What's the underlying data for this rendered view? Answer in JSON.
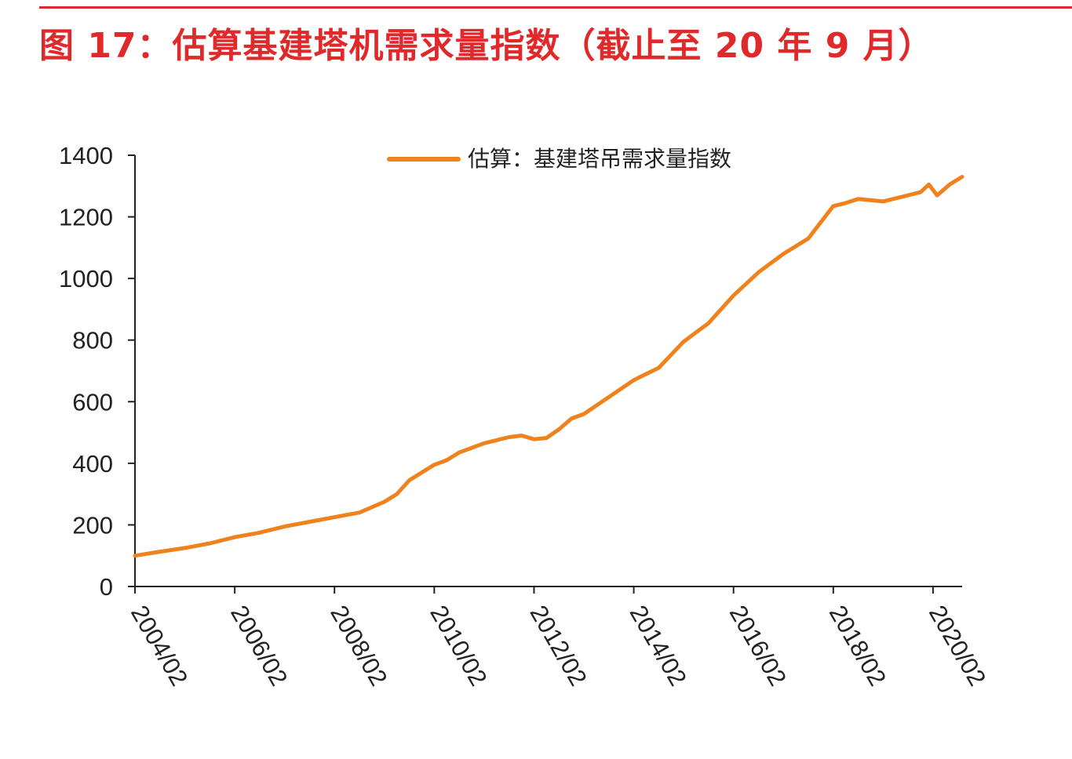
{
  "figure": {
    "title": "图 17：估算基建塔机需求量指数（截止至 20 年 9 月）"
  },
  "colors": {
    "title": "#e0292b",
    "series": "#f0821e",
    "axis": "#222222"
  },
  "chart_data": {
    "type": "line",
    "title": "",
    "xlabel": "",
    "ylabel": "",
    "ylim": [
      0,
      1400
    ],
    "yticks": [
      0,
      200,
      400,
      600,
      800,
      1000,
      1200,
      1400
    ],
    "xlim": [
      "2004/02",
      "2020/09"
    ],
    "xticks": [
      "2004/02",
      "2006/02",
      "2008/02",
      "2010/02",
      "2012/02",
      "2014/02",
      "2016/02",
      "2018/02",
      "2020/02"
    ],
    "grid": false,
    "legend": "top-center",
    "series": [
      {
        "name": "估算：基建塔吊需求量指数",
        "x": [
          "2004/02",
          "2004/08",
          "2005/02",
          "2005/08",
          "2006/02",
          "2006/08",
          "2007/02",
          "2007/08",
          "2008/02",
          "2008/08",
          "2009/02",
          "2009/05",
          "2009/08",
          "2010/02",
          "2010/05",
          "2010/08",
          "2011/02",
          "2011/05",
          "2011/08",
          "2011/11",
          "2012/02",
          "2012/05",
          "2012/08",
          "2012/11",
          "2013/02",
          "2013/08",
          "2014/02",
          "2014/08",
          "2015/02",
          "2015/08",
          "2016/02",
          "2016/08",
          "2017/02",
          "2017/08",
          "2018/02",
          "2018/05",
          "2018/08",
          "2019/02",
          "2019/08",
          "2019/11",
          "2020/01",
          "2020/03",
          "2020/06",
          "2020/09"
        ],
        "values": [
          100,
          113,
          125,
          140,
          160,
          175,
          195,
          210,
          225,
          240,
          275,
          300,
          345,
          395,
          410,
          435,
          465,
          475,
          485,
          490,
          478,
          482,
          510,
          545,
          560,
          615,
          670,
          710,
          795,
          855,
          945,
          1020,
          1080,
          1130,
          1235,
          1245,
          1258,
          1250,
          1270,
          1280,
          1305,
          1270,
          1305,
          1330
        ]
      }
    ]
  }
}
